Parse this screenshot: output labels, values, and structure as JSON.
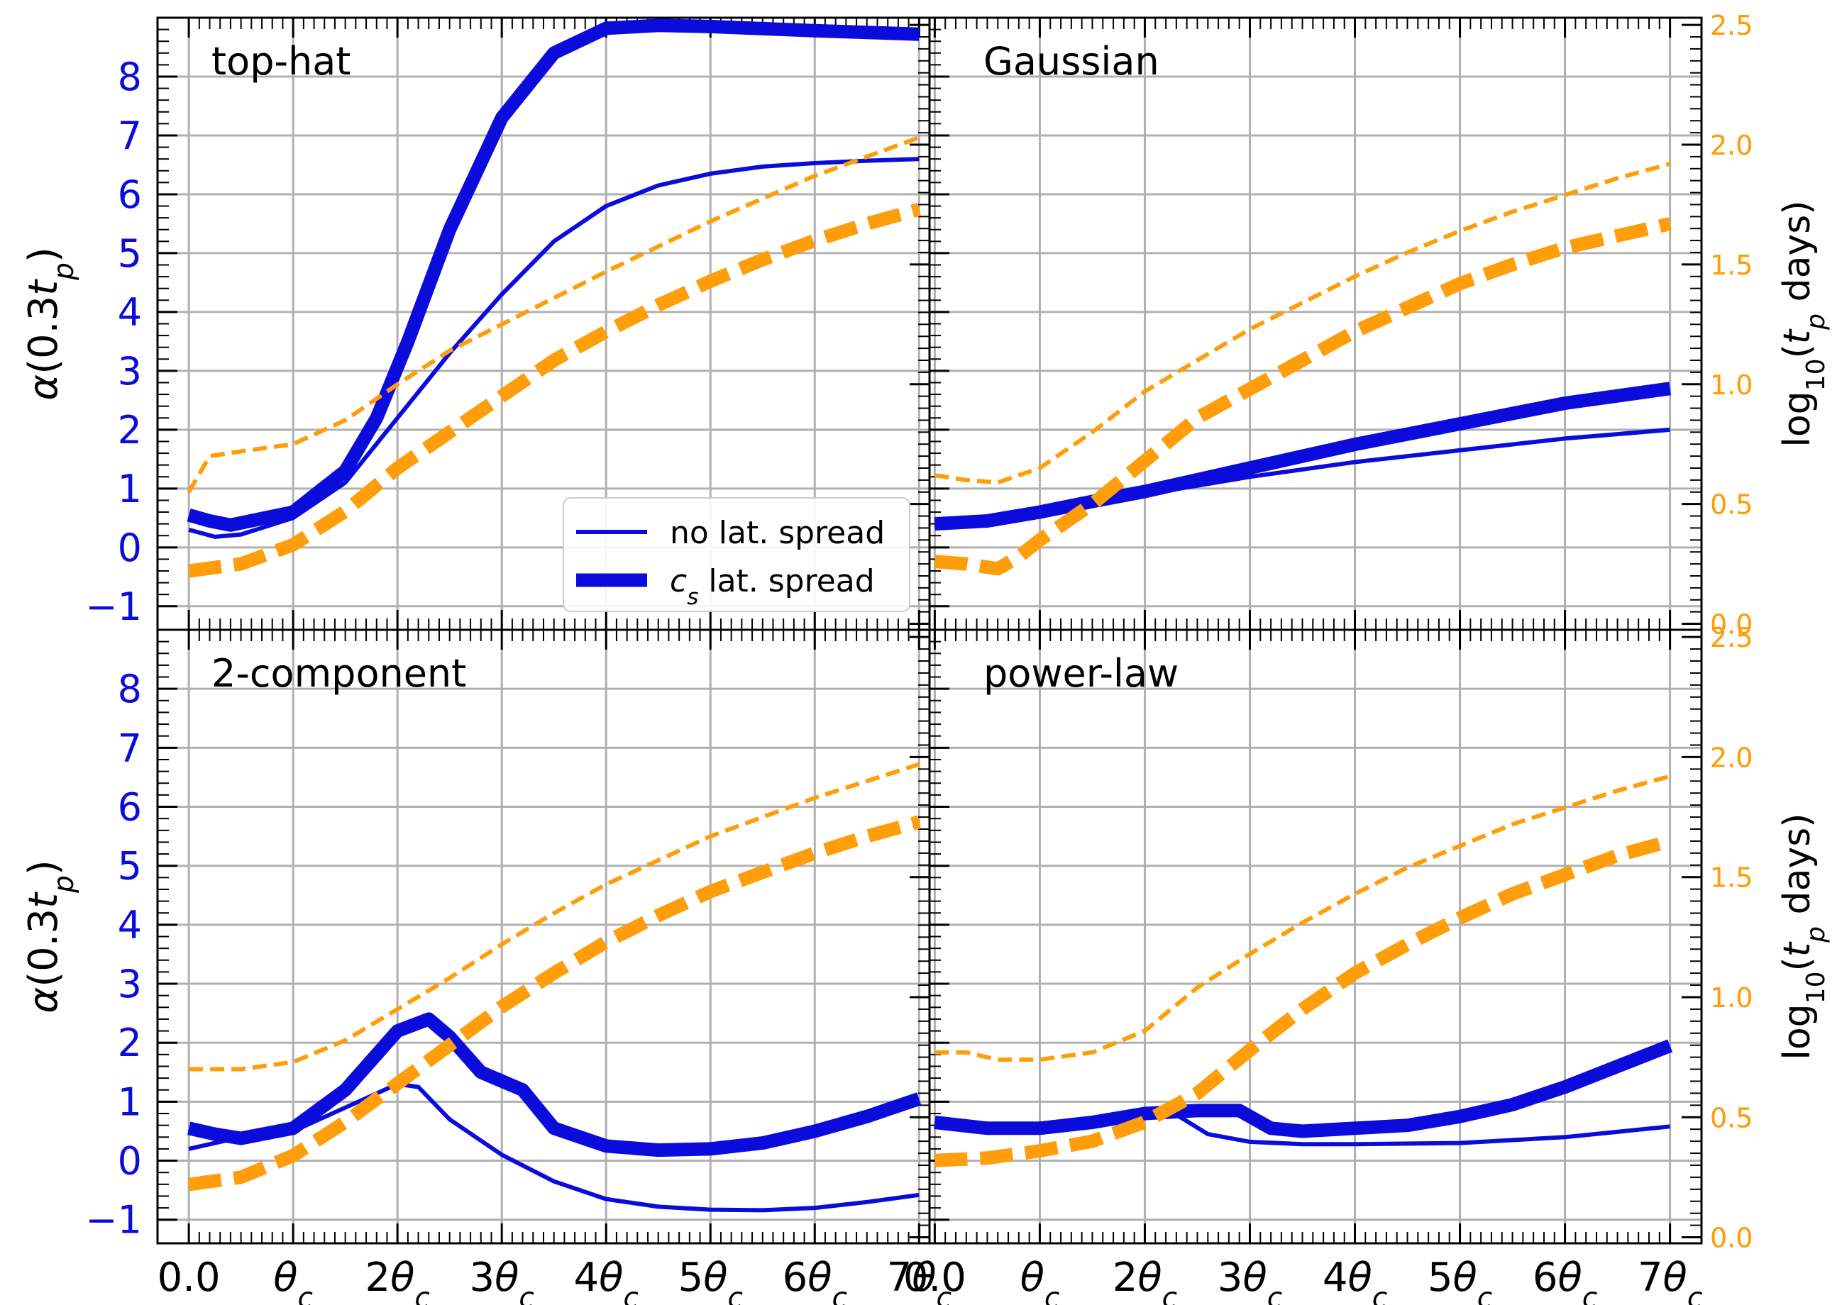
{
  "colors": {
    "alpha": "#0b0bdb",
    "tp": "#ff9d0b",
    "axes": "#000000",
    "grid": "#b0b0b0"
  },
  "chart_data": [
    {
      "type": "line",
      "panel": "top-left",
      "title": "top-hat",
      "x_tick_labels": [
        "0.0",
        "θc",
        "2θc",
        "3θc",
        "4θc",
        "5θc",
        "6θc",
        "7θc"
      ],
      "ylabel_left": "α(0.3tp)",
      "ylabel_right": "",
      "yticks_left": [
        "−1",
        "0",
        "1",
        "2",
        "3",
        "4",
        "5",
        "6",
        "7",
        "8"
      ],
      "yticks_right": [
        "0.0",
        "0.5",
        "1.0",
        "1.5",
        "2.0",
        "2.5"
      ],
      "xlim": [
        -0.3,
        7.1
      ],
      "ylim_left": [
        -1.4,
        9.0
      ],
      "ylim_right": [
        -0.025,
        2.53
      ],
      "legend": {
        "placement": "lower right",
        "entries": [
          "no lat. spread",
          "cs lat. spread"
        ]
      },
      "series": [
        {
          "axis": "left",
          "style": "solid-thin",
          "x": [
            0.0,
            0.25,
            0.5,
            1.0,
            1.5,
            2.0,
            2.5,
            3.0,
            3.5,
            4.0,
            4.5,
            5.0,
            5.5,
            6.0,
            6.5,
            7.0
          ],
          "y": [
            0.3,
            0.18,
            0.22,
            0.5,
            1.1,
            2.2,
            3.3,
            4.3,
            5.2,
            5.8,
            6.15,
            6.35,
            6.47,
            6.53,
            6.57,
            6.6
          ]
        },
        {
          "axis": "left",
          "style": "solid-thick",
          "x": [
            0.0,
            0.2,
            0.4,
            1.0,
            1.5,
            1.8,
            2.1,
            2.5,
            3.0,
            3.5,
            4.0,
            4.5,
            5.0,
            6.0,
            7.0
          ],
          "y": [
            0.55,
            0.45,
            0.38,
            0.6,
            1.3,
            2.2,
            3.5,
            5.4,
            7.3,
            8.4,
            8.82,
            8.87,
            8.85,
            8.78,
            8.72
          ]
        },
        {
          "axis": "right",
          "style": "dashed-thin",
          "x": [
            0.0,
            0.2,
            0.5,
            1.0,
            1.5,
            2.0,
            2.5,
            3.0,
            3.5,
            4.0,
            5.0,
            6.0,
            7.0
          ],
          "y": [
            0.55,
            0.7,
            0.72,
            0.75,
            0.85,
            1.0,
            1.14,
            1.25,
            1.36,
            1.47,
            1.68,
            1.87,
            2.03
          ]
        },
        {
          "axis": "right",
          "style": "dashed-thick",
          "x": [
            0.0,
            0.5,
            1.0,
            1.5,
            2.0,
            2.5,
            3.0,
            3.5,
            4.0,
            4.5,
            5.0,
            5.5,
            6.0,
            6.5,
            7.0
          ],
          "y": [
            0.22,
            0.25,
            0.33,
            0.47,
            0.65,
            0.8,
            0.95,
            1.1,
            1.22,
            1.33,
            1.43,
            1.52,
            1.6,
            1.67,
            1.73
          ]
        }
      ]
    },
    {
      "type": "line",
      "panel": "top-right",
      "title": "Gaussian",
      "x_tick_labels": [
        "0.0",
        "θc",
        "2θc",
        "3θc",
        "4θc",
        "5θc",
        "6θc",
        "7θc"
      ],
      "ylabel_left": "",
      "ylabel_right": "log10(tp days)",
      "yticks_left": [],
      "yticks_right": [
        "0.0",
        "0.5",
        "1.0",
        "1.5",
        "2.0",
        "2.5"
      ],
      "xlim": [
        -0.05,
        7.3
      ],
      "ylim_left": [
        -1.4,
        9.0
      ],
      "ylim_right": [
        -0.025,
        2.53
      ],
      "series": [
        {
          "axis": "left",
          "style": "solid-thin",
          "x": [
            0.0,
            0.5,
            1.0,
            1.5,
            2.0,
            3.0,
            4.0,
            5.0,
            6.0,
            7.0
          ],
          "y": [
            0.35,
            0.42,
            0.55,
            0.72,
            0.9,
            1.2,
            1.45,
            1.65,
            1.85,
            2.0
          ]
        },
        {
          "axis": "left",
          "style": "solid-thick",
          "x": [
            0.0,
            0.5,
            1.0,
            1.5,
            2.0,
            3.0,
            4.0,
            5.0,
            6.0,
            7.0
          ],
          "y": [
            0.4,
            0.45,
            0.6,
            0.78,
            0.95,
            1.35,
            1.75,
            2.1,
            2.45,
            2.7
          ]
        },
        {
          "axis": "right",
          "style": "dashed-thin",
          "x": [
            0.0,
            0.3,
            0.6,
            1.0,
            1.5,
            2.0,
            2.5,
            3.0,
            3.5,
            4.0,
            4.5,
            5.0,
            5.5,
            6.0,
            6.5,
            7.0
          ],
          "y": [
            0.62,
            0.6,
            0.59,
            0.65,
            0.8,
            0.97,
            1.1,
            1.23,
            1.34,
            1.45,
            1.55,
            1.64,
            1.72,
            1.79,
            1.86,
            1.92
          ]
        },
        {
          "axis": "right",
          "style": "dashed-thick",
          "x": [
            0.0,
            0.3,
            0.6,
            0.8,
            1.0,
            1.5,
            2.0,
            2.5,
            3.0,
            3.5,
            4.0,
            4.5,
            5.0,
            5.5,
            6.0,
            6.5,
            7.0
          ],
          "y": [
            0.26,
            0.25,
            0.23,
            0.28,
            0.35,
            0.5,
            0.68,
            0.86,
            0.98,
            1.1,
            1.22,
            1.32,
            1.42,
            1.5,
            1.57,
            1.62,
            1.67
          ]
        }
      ]
    },
    {
      "type": "line",
      "panel": "bottom-left",
      "title": "2-component",
      "x_tick_labels": [
        "0.0",
        "θc",
        "2θc",
        "3θc",
        "4θc",
        "5θc",
        "6θc",
        "7θc"
      ],
      "ylabel_left": "α(0.3tp)",
      "ylabel_right": "",
      "yticks_left": [
        "−1",
        "0",
        "1",
        "2",
        "3",
        "4",
        "5",
        "6",
        "7",
        "8"
      ],
      "yticks_right": [
        "0.0",
        "0.5",
        "1.0",
        "1.5",
        "2.0",
        "2.5"
      ],
      "xlim": [
        -0.3,
        7.1
      ],
      "ylim_left": [
        -1.4,
        9.0
      ],
      "ylim_right": [
        -0.025,
        2.53
      ],
      "series": [
        {
          "axis": "left",
          "style": "solid-thin",
          "x": [
            0.0,
            0.25,
            0.5,
            1.0,
            1.5,
            2.0,
            2.2,
            2.5,
            3.0,
            3.5,
            4.0,
            4.5,
            5.0,
            5.5,
            6.0,
            6.5,
            7.0
          ],
          "y": [
            0.2,
            0.3,
            0.4,
            0.5,
            0.9,
            1.3,
            1.25,
            0.7,
            0.1,
            -0.35,
            -0.65,
            -0.78,
            -0.83,
            -0.84,
            -0.8,
            -0.7,
            -0.58
          ]
        },
        {
          "axis": "left",
          "style": "solid-thick",
          "x": [
            0.0,
            0.25,
            0.5,
            1.0,
            1.5,
            2.0,
            2.3,
            2.5,
            2.8,
            3.0,
            3.2,
            3.5,
            4.0,
            4.5,
            5.0,
            5.5,
            6.0,
            6.5,
            7.0
          ],
          "y": [
            0.55,
            0.45,
            0.38,
            0.55,
            1.2,
            2.2,
            2.4,
            2.1,
            1.5,
            1.35,
            1.2,
            0.55,
            0.25,
            0.18,
            0.2,
            0.3,
            0.5,
            0.75,
            1.05
          ]
        },
        {
          "axis": "right",
          "style": "dashed-thin",
          "x": [
            0.0,
            0.5,
            1.0,
            1.5,
            2.0,
            2.5,
            3.0,
            3.5,
            4.0,
            5.0,
            6.0,
            7.0
          ],
          "y": [
            0.7,
            0.7,
            0.73,
            0.82,
            0.95,
            1.08,
            1.22,
            1.35,
            1.47,
            1.67,
            1.83,
            1.97
          ]
        },
        {
          "axis": "right",
          "style": "dashed-thick",
          "x": [
            0.0,
            0.5,
            1.0,
            1.5,
            2.0,
            2.5,
            3.0,
            3.5,
            4.0,
            4.5,
            5.0,
            5.5,
            6.0,
            6.5,
            7.0
          ],
          "y": [
            0.22,
            0.25,
            0.34,
            0.48,
            0.64,
            0.8,
            0.96,
            1.1,
            1.23,
            1.34,
            1.44,
            1.52,
            1.6,
            1.67,
            1.73
          ]
        }
      ]
    },
    {
      "type": "line",
      "panel": "bottom-right",
      "title": "power-law",
      "x_tick_labels": [
        "0.0",
        "θc",
        "2θc",
        "3θc",
        "4θc",
        "5θc",
        "6θc",
        "7θc"
      ],
      "ylabel_left": "",
      "ylabel_right": "log10(tp days)",
      "yticks_left": [],
      "yticks_right": [
        "0.0",
        "0.5",
        "1.0",
        "1.5",
        "2.0",
        "2.5"
      ],
      "xlim": [
        -0.05,
        7.3
      ],
      "ylim_left": [
        -1.4,
        9.0
      ],
      "ylim_right": [
        -0.025,
        2.53
      ],
      "series": [
        {
          "axis": "left",
          "style": "solid-thin",
          "x": [
            0.0,
            0.5,
            1.0,
            1.5,
            2.0,
            2.3,
            2.6,
            3.0,
            3.5,
            4.0,
            5.0,
            6.0,
            7.0
          ],
          "y": [
            0.6,
            0.55,
            0.55,
            0.65,
            0.8,
            0.78,
            0.45,
            0.32,
            0.28,
            0.28,
            0.3,
            0.4,
            0.58
          ]
        },
        {
          "axis": "left",
          "style": "solid-thick",
          "x": [
            0.0,
            0.5,
            1.0,
            1.5,
            2.0,
            2.5,
            2.9,
            3.2,
            3.5,
            4.0,
            4.5,
            5.0,
            5.5,
            6.0,
            6.5,
            7.0
          ],
          "y": [
            0.65,
            0.55,
            0.55,
            0.65,
            0.8,
            0.85,
            0.85,
            0.55,
            0.5,
            0.55,
            0.6,
            0.75,
            0.95,
            1.25,
            1.6,
            1.95
          ]
        },
        {
          "axis": "right",
          "style": "dashed-thin",
          "x": [
            0.0,
            0.3,
            0.6,
            1.0,
            1.5,
            2.0,
            2.5,
            3.0,
            3.5,
            4.0,
            4.5,
            5.0,
            5.5,
            6.0,
            6.5,
            7.0
          ],
          "y": [
            0.77,
            0.77,
            0.74,
            0.74,
            0.77,
            0.86,
            1.04,
            1.18,
            1.31,
            1.43,
            1.54,
            1.63,
            1.72,
            1.79,
            1.86,
            1.92
          ]
        },
        {
          "axis": "right",
          "style": "dashed-thick",
          "x": [
            0.0,
            0.5,
            1.0,
            1.5,
            2.0,
            2.5,
            3.0,
            3.5,
            4.0,
            4.5,
            5.0,
            5.5,
            6.0,
            6.5,
            7.0
          ],
          "y": [
            0.32,
            0.33,
            0.36,
            0.4,
            0.48,
            0.6,
            0.78,
            0.95,
            1.1,
            1.22,
            1.33,
            1.43,
            1.51,
            1.59,
            1.65
          ]
        }
      ]
    }
  ]
}
